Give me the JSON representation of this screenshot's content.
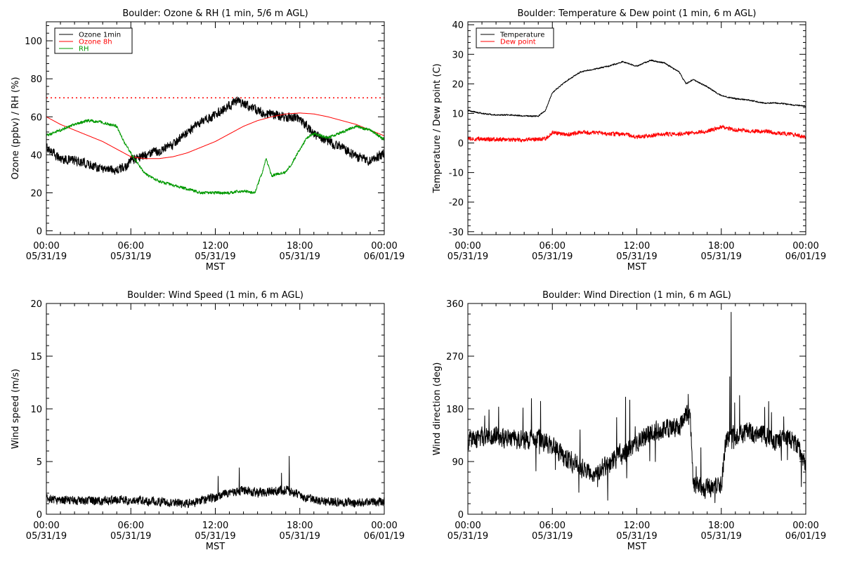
{
  "chart_data": [
    {
      "id": "ozone_rh",
      "type": "line",
      "title": "Boulder: Ozone & RH (1 min, 5/6 m AGL)",
      "xlabel": "MST",
      "ylabel": "Ozone (ppbv) / RH (%)",
      "xlim": [
        0,
        24
      ],
      "ylim": [
        -2,
        110
      ],
      "yticks": [
        0,
        20,
        40,
        60,
        80,
        100
      ],
      "xticks": [
        0,
        6,
        12,
        18,
        24
      ],
      "xtick_labels": [
        [
          "00:00",
          "05/31/19"
        ],
        [
          "06:00",
          "05/31/19"
        ],
        [
          "12:00",
          "05/31/19"
        ],
        [
          "18:00",
          "05/31/19"
        ],
        [
          "00:00",
          "06/01/19"
        ]
      ],
      "legend_position": "top-left",
      "reference_lines": [
        {
          "y": 70,
          "color": "#ff0000",
          "style": "dotted"
        }
      ],
      "series": [
        {
          "name": "Ozone 1min",
          "color": "#000000",
          "noise": 3.2,
          "x": [
            0,
            1,
            2,
            3,
            4,
            5,
            5.5,
            6,
            7,
            8,
            9,
            10,
            11,
            12,
            13,
            13.5,
            14,
            15,
            16,
            17,
            18,
            19,
            20,
            21,
            22,
            23,
            24
          ],
          "y": [
            44,
            38,
            37,
            35,
            33,
            32,
            33,
            37,
            40,
            42,
            45,
            52,
            57,
            61,
            66,
            68,
            67,
            63,
            61,
            60,
            59,
            51,
            47,
            44,
            39,
            37,
            41
          ]
        },
        {
          "name": "Ozone 8h",
          "color": "#ff0000",
          "noise": 0,
          "x": [
            0,
            1,
            2,
            3,
            4,
            5,
            6,
            7,
            8,
            9,
            10,
            11,
            12,
            13,
            14,
            15,
            16,
            17,
            18,
            19,
            20,
            21,
            22,
            23,
            24
          ],
          "y": [
            60,
            56,
            53,
            50,
            47,
            43,
            39,
            38,
            38,
            39,
            41,
            44,
            47,
            51,
            55,
            58,
            60,
            61.5,
            62,
            61.5,
            60,
            58,
            56,
            53,
            50
          ]
        },
        {
          "name": "RH",
          "color": "#009900",
          "noise": 1.0,
          "x": [
            0,
            1,
            2,
            3,
            4,
            5,
            5.5,
            6,
            7,
            8,
            9,
            10,
            11,
            12,
            13,
            14,
            14.8,
            15.3,
            15.6,
            16,
            17,
            17.5,
            18,
            18.5,
            19,
            20,
            21,
            22,
            23,
            24
          ],
          "y": [
            50,
            53,
            56,
            58,
            57,
            55,
            47,
            41,
            30,
            26,
            24,
            22,
            20,
            20,
            20,
            21,
            20,
            30,
            38,
            29,
            31,
            36,
            43,
            49,
            51,
            49,
            52,
            55,
            53,
            48
          ]
        }
      ]
    },
    {
      "id": "temp_dew",
      "type": "line",
      "title": "Boulder: Temperature & Dew point (1 min, 6 m AGL)",
      "xlabel": "MST",
      "ylabel": "Temperature / Dew point (C)",
      "xlim": [
        0,
        24
      ],
      "ylim": [
        -31,
        41
      ],
      "yticks": [
        -30,
        -20,
        -10,
        0,
        10,
        20,
        30,
        40
      ],
      "xticks": [
        0,
        6,
        12,
        18,
        24
      ],
      "xtick_labels": [
        [
          "00:00",
          "05/31/19"
        ],
        [
          "06:00",
          "05/31/19"
        ],
        [
          "12:00",
          "05/31/19"
        ],
        [
          "18:00",
          "05/31/19"
        ],
        [
          "00:00",
          "06/01/19"
        ]
      ],
      "legend_position": "top-left",
      "series": [
        {
          "name": "Temperature",
          "color": "#000000",
          "noise": 0.3,
          "x": [
            0,
            1,
            2,
            3,
            4,
            5,
            5.5,
            6,
            7,
            8,
            9,
            10,
            11,
            12,
            13,
            14,
            15,
            15.5,
            16,
            17,
            18,
            19,
            20,
            21,
            22,
            23,
            24
          ],
          "y": [
            11,
            10,
            9.5,
            9.5,
            9.2,
            9.0,
            11,
            17,
            21,
            24,
            25,
            26,
            27.5,
            26,
            28,
            27,
            24,
            20,
            21.5,
            19,
            16,
            15,
            14.5,
            13.5,
            13.5,
            13.0,
            12.5
          ]
        },
        {
          "name": "Dew point",
          "color": "#ff0000",
          "noise": 0.9,
          "x": [
            0,
            2,
            4,
            5.5,
            6,
            7,
            8,
            9,
            10,
            11,
            12,
            13,
            14,
            15,
            16,
            17,
            18,
            19,
            20,
            21,
            22,
            23,
            24
          ],
          "y": [
            1.5,
            1.2,
            1.0,
            1.5,
            3.5,
            3.0,
            3.5,
            3.5,
            3.0,
            3.0,
            2.0,
            2.5,
            3.0,
            3.0,
            3.5,
            4.0,
            5.5,
            4.5,
            4.0,
            4.0,
            3.5,
            3.0,
            2.0
          ]
        }
      ]
    },
    {
      "id": "wind_speed",
      "type": "line",
      "title": "Boulder: Wind Speed (1 min, 6 m AGL)",
      "xlabel": "MST",
      "ylabel": "Wind speed (m/s)",
      "xlim": [
        0,
        24
      ],
      "ylim": [
        0,
        20
      ],
      "yticks": [
        0,
        5,
        10,
        15,
        20
      ],
      "xticks": [
        0,
        6,
        12,
        18,
        24
      ],
      "xtick_labels": [
        [
          "00:00",
          "05/31/19"
        ],
        [
          "06:00",
          "05/31/19"
        ],
        [
          "12:00",
          "05/31/19"
        ],
        [
          "18:00",
          "05/31/19"
        ],
        [
          "00:00",
          "06/01/19"
        ]
      ],
      "series": [
        {
          "name": "",
          "color": "#000000",
          "noise": 0.55,
          "x": [
            0,
            2,
            4,
            6,
            8,
            10,
            11,
            12,
            13,
            14,
            15,
            16,
            17,
            18,
            19,
            20,
            22,
            24
          ],
          "y": [
            1.4,
            1.3,
            1.3,
            1.3,
            1.2,
            1.0,
            1.3,
            1.6,
            2.0,
            2.3,
            2.0,
            2.2,
            2.3,
            1.8,
            1.3,
            1.2,
            1.1,
            1.2
          ]
        }
      ],
      "spikes": [
        {
          "x": 17.25,
          "y": 5.5
        },
        {
          "x": 13.7,
          "y": 4.4
        },
        {
          "x": 16.7,
          "y": 3.9
        },
        {
          "x": 12.2,
          "y": 3.6
        }
      ]
    },
    {
      "id": "wind_dir",
      "type": "line",
      "title": "Boulder: Wind Direction (1 min, 6 m AGL)",
      "xlabel": "MST",
      "ylabel": "Wind direction (deg)",
      "xlim": [
        0,
        24
      ],
      "ylim": [
        0,
        360
      ],
      "yticks": [
        0,
        90,
        180,
        270,
        360
      ],
      "xticks": [
        0,
        6,
        12,
        18,
        24
      ],
      "xtick_labels": [
        [
          "00:00",
          "05/31/19"
        ],
        [
          "06:00",
          "05/31/19"
        ],
        [
          "12:00",
          "05/31/19"
        ],
        [
          "18:00",
          "05/31/19"
        ],
        [
          "00:00",
          "06/01/19"
        ]
      ],
      "series": [
        {
          "name": "",
          "color": "#000000",
          "noise": 22,
          "x": [
            0,
            1,
            2,
            3,
            4,
            5,
            6,
            7,
            8,
            9,
            10,
            11,
            12,
            13,
            14,
            15,
            15.5,
            15.8,
            16,
            17,
            18,
            18.3,
            18.7,
            19,
            20,
            21,
            22,
            23,
            24
          ],
          "y": [
            125,
            130,
            135,
            128,
            125,
            130,
            115,
            95,
            80,
            70,
            85,
            105,
            120,
            140,
            145,
            150,
            170,
            165,
            50,
            45,
            50,
            120,
            140,
            130,
            140,
            135,
            125,
            130,
            90
          ]
        }
      ],
      "spikes": [
        {
          "x": 18.7,
          "y": 345
        },
        {
          "x": 18.6,
          "y": 235
        },
        {
          "x": 15.65,
          "y": 205
        },
        {
          "x": 11.2,
          "y": 200
        },
        {
          "x": 11.5,
          "y": 195
        }
      ]
    }
  ]
}
